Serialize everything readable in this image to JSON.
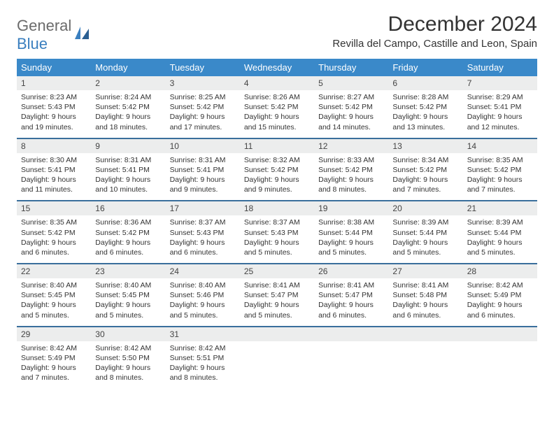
{
  "logo": {
    "word1": "General",
    "word2": "Blue"
  },
  "title": "December 2024",
  "location": "Revilla del Campo, Castille and Leon, Spain",
  "colors": {
    "header_bg": "#3a89c9",
    "header_fg": "#ffffff",
    "row_divider": "#3a6f9c",
    "daynum_bg": "#eceded",
    "logo_gray": "#6b6b6b",
    "logo_blue": "#3a7fbf",
    "text": "#333333",
    "page_bg": "#ffffff"
  },
  "weekdays": [
    "Sunday",
    "Monday",
    "Tuesday",
    "Wednesday",
    "Thursday",
    "Friday",
    "Saturday"
  ],
  "weeks": [
    [
      {
        "n": "1",
        "sr": "8:23 AM",
        "ss": "5:43 PM",
        "dl": "9 hours and 19 minutes."
      },
      {
        "n": "2",
        "sr": "8:24 AM",
        "ss": "5:42 PM",
        "dl": "9 hours and 18 minutes."
      },
      {
        "n": "3",
        "sr": "8:25 AM",
        "ss": "5:42 PM",
        "dl": "9 hours and 17 minutes."
      },
      {
        "n": "4",
        "sr": "8:26 AM",
        "ss": "5:42 PM",
        "dl": "9 hours and 15 minutes."
      },
      {
        "n": "5",
        "sr": "8:27 AM",
        "ss": "5:42 PM",
        "dl": "9 hours and 14 minutes."
      },
      {
        "n": "6",
        "sr": "8:28 AM",
        "ss": "5:42 PM",
        "dl": "9 hours and 13 minutes."
      },
      {
        "n": "7",
        "sr": "8:29 AM",
        "ss": "5:41 PM",
        "dl": "9 hours and 12 minutes."
      }
    ],
    [
      {
        "n": "8",
        "sr": "8:30 AM",
        "ss": "5:41 PM",
        "dl": "9 hours and 11 minutes."
      },
      {
        "n": "9",
        "sr": "8:31 AM",
        "ss": "5:41 PM",
        "dl": "9 hours and 10 minutes."
      },
      {
        "n": "10",
        "sr": "8:31 AM",
        "ss": "5:41 PM",
        "dl": "9 hours and 9 minutes."
      },
      {
        "n": "11",
        "sr": "8:32 AM",
        "ss": "5:42 PM",
        "dl": "9 hours and 9 minutes."
      },
      {
        "n": "12",
        "sr": "8:33 AM",
        "ss": "5:42 PM",
        "dl": "9 hours and 8 minutes."
      },
      {
        "n": "13",
        "sr": "8:34 AM",
        "ss": "5:42 PM",
        "dl": "9 hours and 7 minutes."
      },
      {
        "n": "14",
        "sr": "8:35 AM",
        "ss": "5:42 PM",
        "dl": "9 hours and 7 minutes."
      }
    ],
    [
      {
        "n": "15",
        "sr": "8:35 AM",
        "ss": "5:42 PM",
        "dl": "9 hours and 6 minutes."
      },
      {
        "n": "16",
        "sr": "8:36 AM",
        "ss": "5:42 PM",
        "dl": "9 hours and 6 minutes."
      },
      {
        "n": "17",
        "sr": "8:37 AM",
        "ss": "5:43 PM",
        "dl": "9 hours and 6 minutes."
      },
      {
        "n": "18",
        "sr": "8:37 AM",
        "ss": "5:43 PM",
        "dl": "9 hours and 5 minutes."
      },
      {
        "n": "19",
        "sr": "8:38 AM",
        "ss": "5:44 PM",
        "dl": "9 hours and 5 minutes."
      },
      {
        "n": "20",
        "sr": "8:39 AM",
        "ss": "5:44 PM",
        "dl": "9 hours and 5 minutes."
      },
      {
        "n": "21",
        "sr": "8:39 AM",
        "ss": "5:44 PM",
        "dl": "9 hours and 5 minutes."
      }
    ],
    [
      {
        "n": "22",
        "sr": "8:40 AM",
        "ss": "5:45 PM",
        "dl": "9 hours and 5 minutes."
      },
      {
        "n": "23",
        "sr": "8:40 AM",
        "ss": "5:45 PM",
        "dl": "9 hours and 5 minutes."
      },
      {
        "n": "24",
        "sr": "8:40 AM",
        "ss": "5:46 PM",
        "dl": "9 hours and 5 minutes."
      },
      {
        "n": "25",
        "sr": "8:41 AM",
        "ss": "5:47 PM",
        "dl": "9 hours and 5 minutes."
      },
      {
        "n": "26",
        "sr": "8:41 AM",
        "ss": "5:47 PM",
        "dl": "9 hours and 6 minutes."
      },
      {
        "n": "27",
        "sr": "8:41 AM",
        "ss": "5:48 PM",
        "dl": "9 hours and 6 minutes."
      },
      {
        "n": "28",
        "sr": "8:42 AM",
        "ss": "5:49 PM",
        "dl": "9 hours and 6 minutes."
      }
    ],
    [
      {
        "n": "29",
        "sr": "8:42 AM",
        "ss": "5:49 PM",
        "dl": "9 hours and 7 minutes."
      },
      {
        "n": "30",
        "sr": "8:42 AM",
        "ss": "5:50 PM",
        "dl": "9 hours and 8 minutes."
      },
      {
        "n": "31",
        "sr": "8:42 AM",
        "ss": "5:51 PM",
        "dl": "9 hours and 8 minutes."
      },
      null,
      null,
      null,
      null
    ]
  ],
  "labels": {
    "sunrise": "Sunrise:",
    "sunset": "Sunset:",
    "daylight": "Daylight:"
  }
}
